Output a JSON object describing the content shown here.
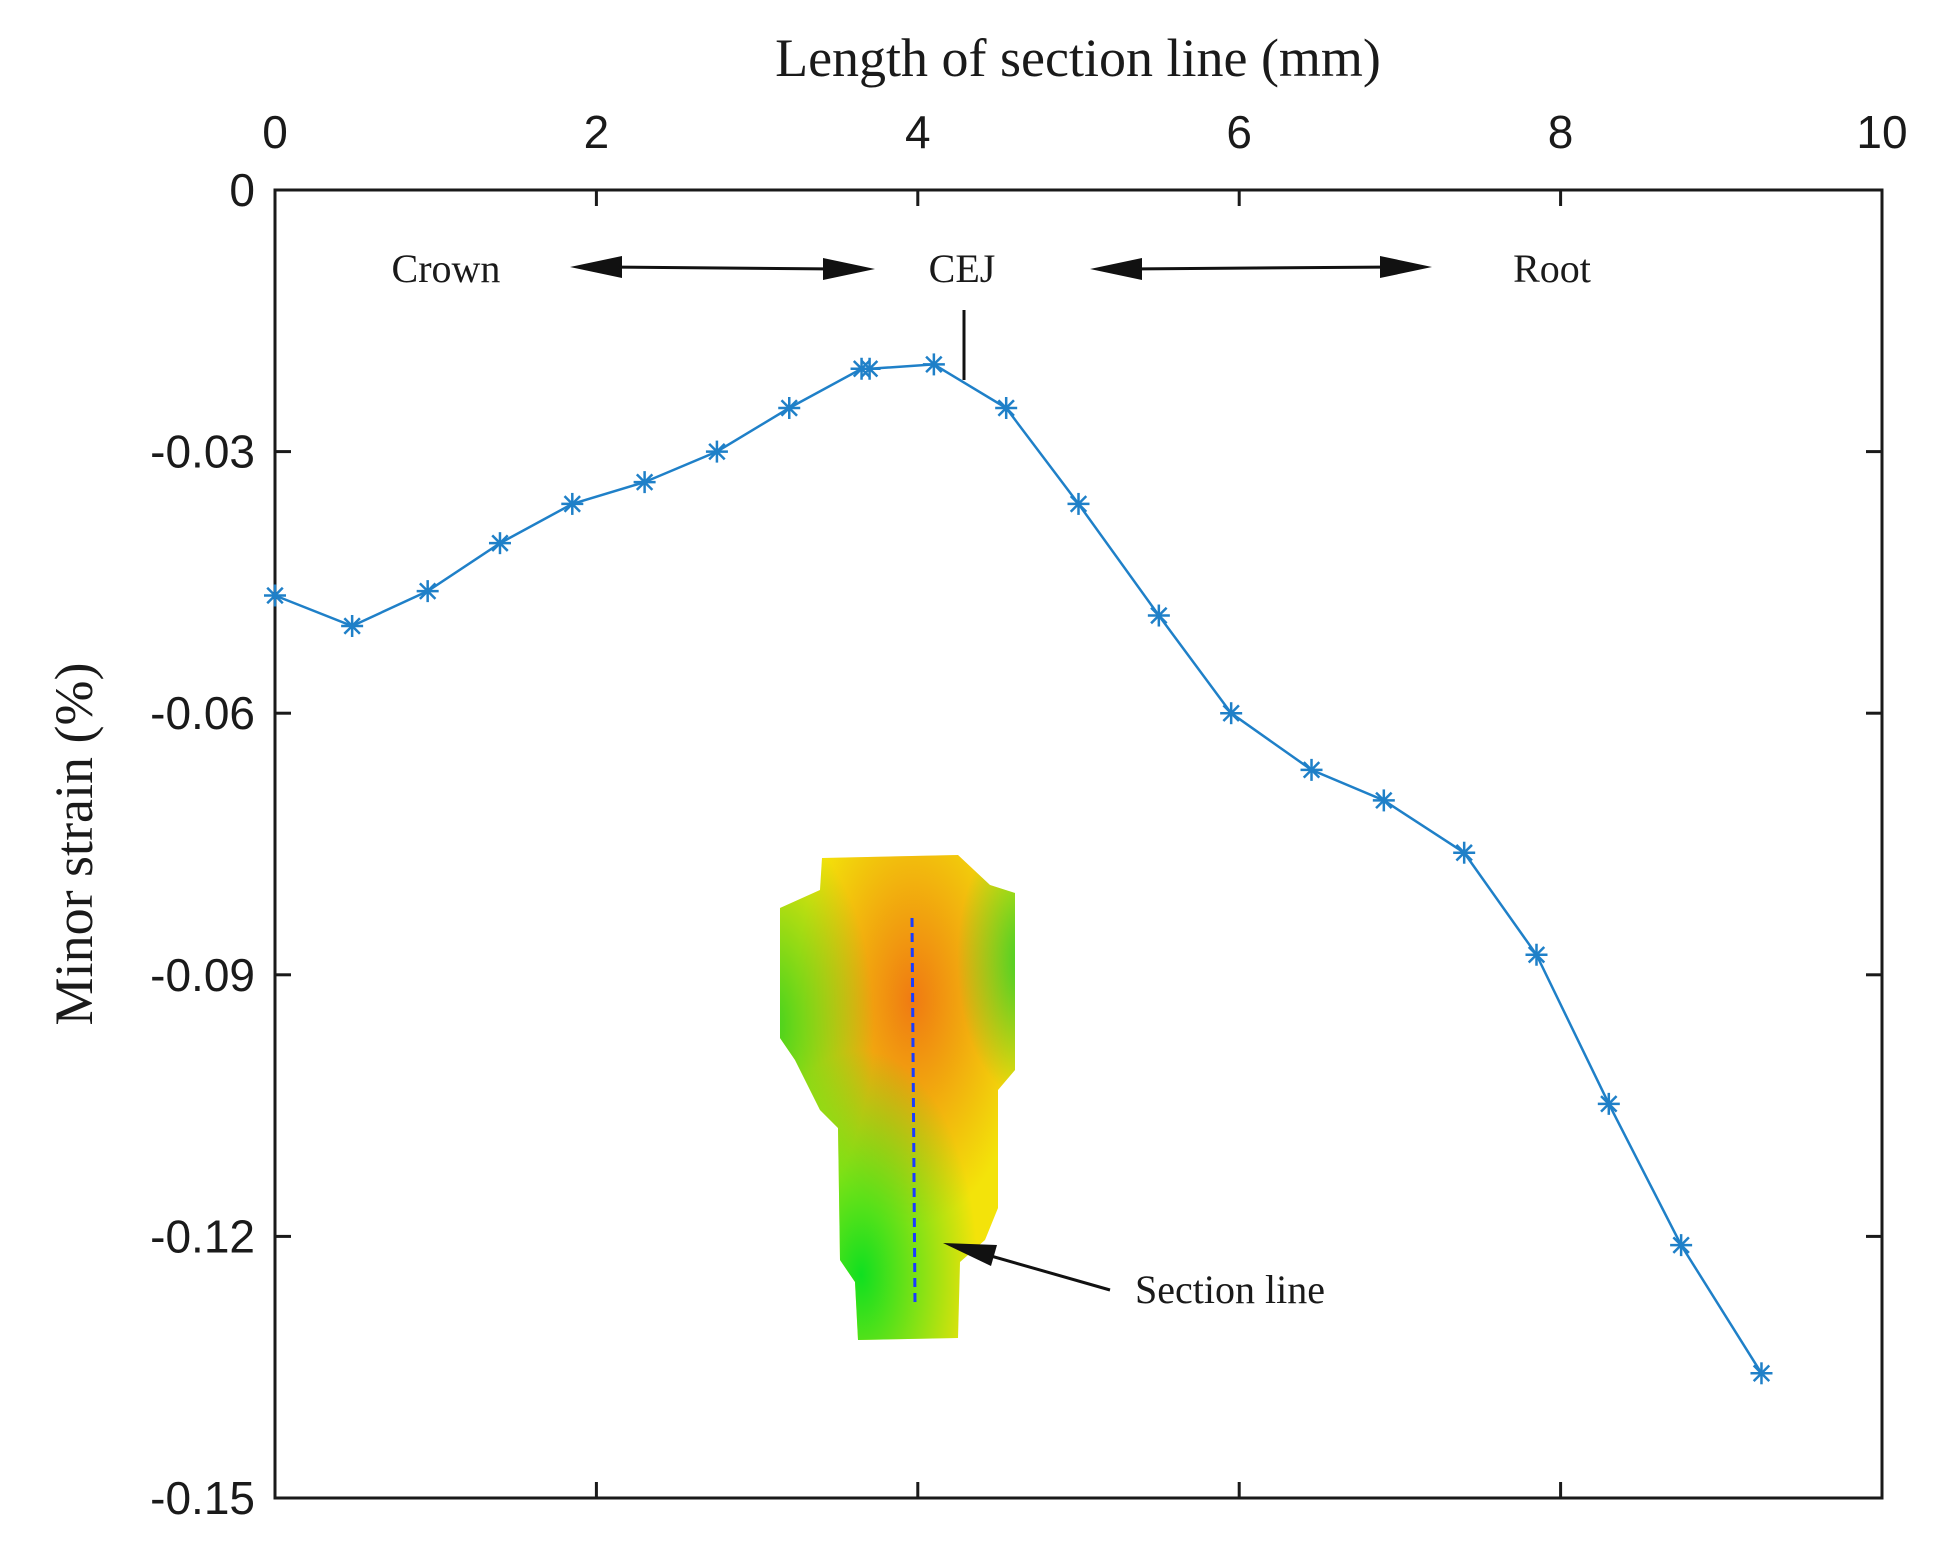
{
  "chart_data": {
    "type": "line",
    "title": "",
    "xlabel": "Length of section line (mm)",
    "ylabel": "Minor strain (%)",
    "xlim": [
      0,
      10
    ],
    "ylim": [
      -0.15,
      0
    ],
    "x_ticks": [
      0,
      2,
      4,
      6,
      8,
      10
    ],
    "x_tick_labels": [
      "0",
      "2",
      "4",
      "6",
      "8",
      "10"
    ],
    "y_ticks": [
      0,
      -0.03,
      -0.06,
      -0.09,
      -0.12,
      -0.15
    ],
    "y_tick_labels": [
      "0",
      "-0.03",
      "-0.06",
      "-0.09",
      "-0.12",
      "-0.15"
    ],
    "x_axis_position": "top",
    "grid": false,
    "series": [
      {
        "name": "Minor strain",
        "color": "#1f80c8",
        "marker": "asterisk",
        "x": [
          0,
          0.48,
          0.95,
          1.4,
          1.85,
          2.3,
          2.75,
          3.2,
          3.65,
          3.7,
          4.1,
          4.55,
          5.0,
          5.5,
          5.95,
          6.45,
          6.9,
          7.4,
          7.85,
          8.3,
          8.75,
          9.25
        ],
        "y": [
          -0.0465,
          -0.05,
          -0.046,
          -0.0405,
          -0.036,
          -0.0335,
          -0.03,
          -0.025,
          -0.0205,
          -0.0205,
          -0.02,
          -0.025,
          -0.036,
          -0.0488,
          -0.06,
          -0.0665,
          -0.07,
          -0.076,
          -0.0877,
          -0.1048,
          -0.121,
          -0.1357
        ]
      }
    ],
    "annotations": {
      "crown": "Crown",
      "cej": "CEJ",
      "root": "Root",
      "section_line": "Section line"
    }
  }
}
